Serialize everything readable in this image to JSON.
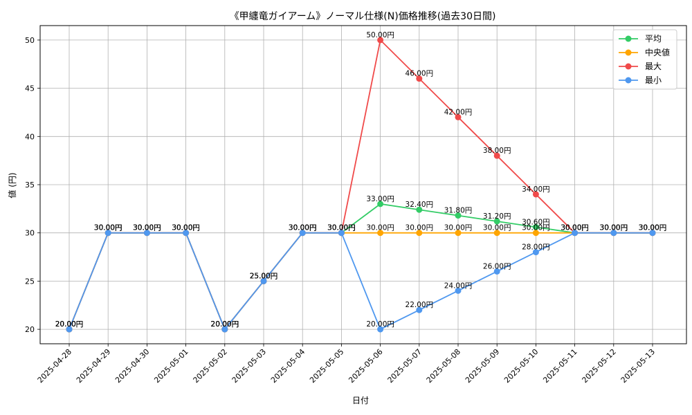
{
  "chart_data": {
    "type": "line",
    "title": "《甲纏竜ガイアーム》ノーマル仕様(N)価格推移(過去30日間)",
    "xlabel": "日付",
    "ylabel": "値 (円)",
    "ylim": [
      18.5,
      51.5
    ],
    "yticks": [
      20,
      25,
      30,
      35,
      40,
      45,
      50
    ],
    "grid": true,
    "legend_position": "top-right",
    "label_suffix": "円",
    "categories": [
      "2025-04-28",
      "2025-04-29",
      "2025-04-30",
      "2025-05-01",
      "2025-05-02",
      "2025-05-03",
      "2025-05-04",
      "2025-05-05",
      "2025-05-06",
      "2025-05-07",
      "2025-05-08",
      "2025-05-09",
      "2025-05-10",
      "2025-05-11",
      "2025-05-12",
      "2025-05-13"
    ],
    "series": [
      {
        "name": "平均",
        "color": "#33cc66",
        "values": [
          20,
          30,
          30,
          30,
          20,
          25,
          30,
          30,
          33.0,
          32.4,
          31.8,
          31.2,
          30.6,
          30,
          30,
          30
        ]
      },
      {
        "name": "中央値",
        "color": "#ffa500",
        "values": [
          20,
          30,
          30,
          30,
          20,
          25,
          30,
          30,
          30,
          30,
          30,
          30,
          30,
          30,
          30,
          30
        ]
      },
      {
        "name": "最大",
        "color": "#f04a4a",
        "values": [
          20,
          30,
          30,
          30,
          20,
          25,
          30,
          30,
          50,
          46,
          42,
          38,
          34,
          30,
          30,
          30
        ]
      },
      {
        "name": "最小",
        "color": "#4f98ef",
        "values": [
          20,
          30,
          30,
          30,
          20,
          25,
          30,
          30,
          20,
          22,
          24,
          26,
          28,
          30,
          30,
          30
        ]
      }
    ]
  }
}
